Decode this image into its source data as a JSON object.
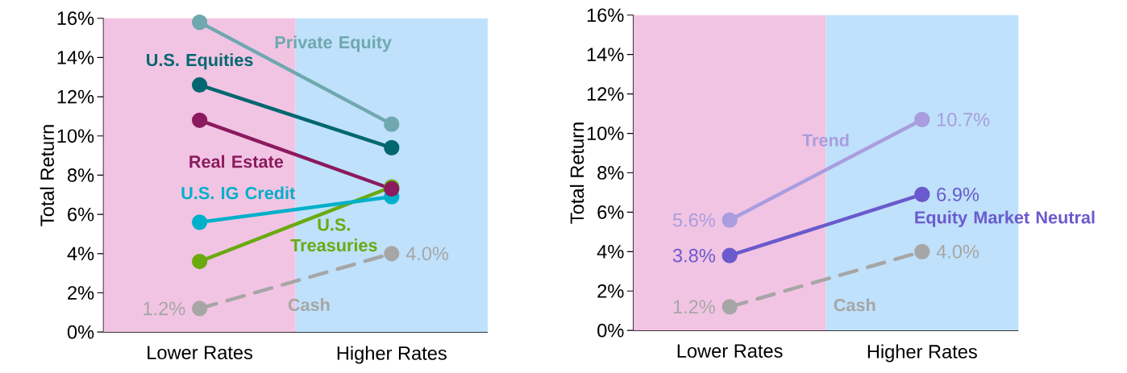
{
  "chart_data": [
    {
      "type": "line",
      "ylabel": "Total Return",
      "categories": [
        "Lower Rates",
        "Higher Rates"
      ],
      "ylim": [
        0,
        16
      ],
      "yticks": [
        {
          "value": 0,
          "label": "0%"
        },
        {
          "value": 2,
          "label": "2%"
        },
        {
          "value": 4,
          "label": "4%"
        },
        {
          "value": 6,
          "label": "6%"
        },
        {
          "value": 8,
          "label": "8%"
        },
        {
          "value": 10,
          "label": "10%"
        },
        {
          "value": 12,
          "label": "12%"
        },
        {
          "value": 14,
          "label": "14%"
        },
        {
          "value": 16,
          "label": "16%"
        }
      ],
      "marker": "circle",
      "line_style": "solid",
      "bands": [
        {
          "axis": "x",
          "from": "Lower Rates",
          "to": "Lower Rates",
          "color": "#f2c4e3"
        },
        {
          "axis": "x",
          "from": "Higher Rates",
          "to": "Higher Rates",
          "color": "#bfe1fb"
        }
      ],
      "series": [
        {
          "name": "Private Equity",
          "color": "#6fa8ae",
          "values": [
            15.8,
            10.6
          ]
        },
        {
          "name": "U.S. Equities",
          "color": "#006770",
          "values": [
            12.6,
            9.4
          ]
        },
        {
          "name": "U.S. Treasuries",
          "color": "#6aaa10",
          "values": [
            3.6,
            7.4
          ]
        },
        {
          "name": "U.S. IG Credit",
          "color": "#00b0ca",
          "values": [
            5.6,
            6.9
          ]
        },
        {
          "name": "Real Estate",
          "color": "#8b1a5e",
          "values": [
            10.8,
            7.3
          ]
        },
        {
          "name": "Cash",
          "color": "#a6a6a6",
          "values": [
            1.2,
            4.0
          ],
          "line_style": "dashed",
          "value_labels": [
            "1.2%",
            "4.0%"
          ]
        }
      ]
    },
    {
      "type": "line",
      "ylabel": "Total Return",
      "categories": [
        "Lower Rates",
        "Higher Rates"
      ],
      "ylim": [
        0,
        16
      ],
      "yticks": [
        {
          "value": 0,
          "label": "0%"
        },
        {
          "value": 2,
          "label": "2%"
        },
        {
          "value": 4,
          "label": "4%"
        },
        {
          "value": 6,
          "label": "6%"
        },
        {
          "value": 8,
          "label": "8%"
        },
        {
          "value": 10,
          "label": "10%"
        },
        {
          "value": 12,
          "label": "12%"
        },
        {
          "value": 14,
          "label": "14%"
        },
        {
          "value": 16,
          "label": "16%"
        }
      ],
      "marker": "circle",
      "line_style": "solid",
      "bands": [
        {
          "axis": "x",
          "from": "Lower Rates",
          "to": "Lower Rates",
          "color": "#f2c4e3"
        },
        {
          "axis": "x",
          "from": "Higher Rates",
          "to": "Higher Rates",
          "color": "#bfe1fb"
        }
      ],
      "series": [
        {
          "name": "Trend",
          "color": "#a99ddf",
          "values": [
            5.6,
            10.7
          ],
          "value_labels": [
            "5.6%",
            "10.7%"
          ]
        },
        {
          "name": "Equity Market Neutral",
          "color": "#6a5acd",
          "values": [
            3.8,
            6.9
          ],
          "value_labels": [
            "3.8%",
            "6.9%"
          ]
        },
        {
          "name": "Cash",
          "color": "#a6a6a6",
          "values": [
            1.2,
            4.0
          ],
          "line_style": "dashed",
          "value_labels": [
            "1.2%",
            "4.0%"
          ]
        }
      ]
    }
  ]
}
